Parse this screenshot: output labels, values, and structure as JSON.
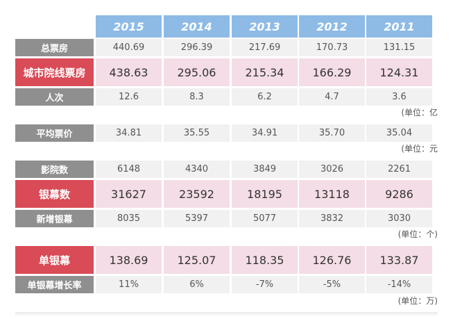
{
  "years": [
    "2015",
    "2014",
    "2013",
    "2012",
    "2011"
  ],
  "sections": [
    {
      "rows": [
        {
          "label": "总票房",
          "values": [
            "440.69",
            "296.39",
            "217.69",
            "170.73",
            "131.15"
          ],
          "highlight": false
        },
        {
          "label": "城市院线票房",
          "values": [
            "438.63",
            "295.06",
            "215.34",
            "166.29",
            "124.31"
          ],
          "highlight": true
        },
        {
          "label": "人次",
          "values": [
            "12.6",
            "8.3",
            "6.2",
            "4.7",
            "3.6"
          ],
          "highlight": false
        }
      ],
      "unit": "(单位：亿"
    },
    {
      "rows": [
        {
          "label": "平均票价",
          "values": [
            "34.81",
            "35.55",
            "34.91",
            "35.70",
            "35.04"
          ],
          "highlight": false
        }
      ],
      "unit": "(单位：元"
    },
    {
      "rows": [
        {
          "label": "影院数",
          "values": [
            "6148",
            "4340",
            "3849",
            "3026",
            "2261"
          ],
          "highlight": false
        },
        {
          "label": "银幕数",
          "values": [
            "31627",
            "23592",
            "18195",
            "13118",
            "9286"
          ],
          "highlight": true
        },
        {
          "label": "新增银幕",
          "values": [
            "8035",
            "5397",
            "5077",
            "3832",
            "3030"
          ],
          "highlight": false
        }
      ],
      "unit": "(单位：个)"
    },
    {
      "rows": [
        {
          "label": "单银幕",
          "values": [
            "138.69",
            "125.07",
            "118.35",
            "126.76",
            "133.87"
          ],
          "highlight": true
        },
        {
          "label": "单银幕增长率",
          "values": [
            "11%",
            "6%",
            "-7%",
            "-5%",
            "-14%"
          ],
          "highlight": false
        }
      ],
      "unit": "(单位：万)"
    }
  ],
  "colors": {
    "header": "#8dbbe6",
    "label_gray": "#8f8f8f",
    "label_red": "#d94b57",
    "value_gray": "#f1f1f1",
    "value_pink": "#f4dde6"
  }
}
